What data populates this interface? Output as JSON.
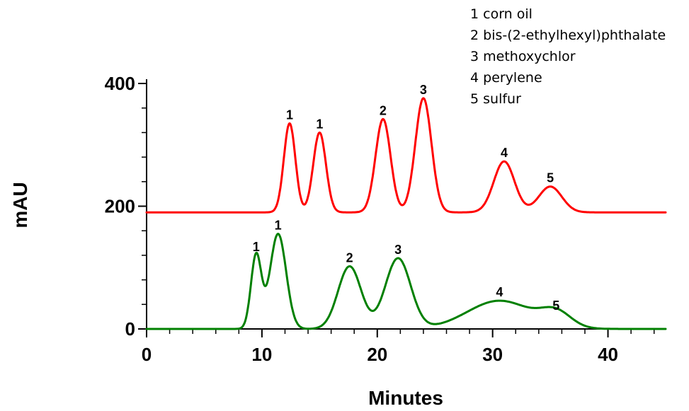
{
  "chart_data": {
    "type": "line",
    "title": "",
    "xlabel": "Minutes",
    "ylabel": "mAU",
    "xlim": [
      0,
      45
    ],
    "ylim": [
      -10,
      420
    ],
    "x_ticks": [
      0,
      10,
      20,
      30,
      40
    ],
    "x_tick_labels": [
      "0",
      "10",
      "20",
      "30",
      "40"
    ],
    "y_ticks": [
      0,
      200,
      400
    ],
    "y_tick_labels": [
      "0",
      "200",
      "400"
    ],
    "grid": false,
    "legend_position": "top-right",
    "legend": [
      "1 corn oil",
      "2 bis-(2-ethylhexyl)phthalate",
      "3 methoxychlor",
      "4 perylene",
      "5 sulfur"
    ],
    "series": [
      {
        "color": "#ff0000",
        "baseline": 190,
        "peaks": [
          {
            "label": "1",
            "x": 12.4,
            "y": 335,
            "width": 0.5
          },
          {
            "label": "1",
            "x": 15.0,
            "y": 320,
            "width": 0.55
          },
          {
            "label": "2",
            "x": 20.5,
            "y": 342,
            "width": 0.65
          },
          {
            "label": "3",
            "x": 24.0,
            "y": 376,
            "width": 0.7
          },
          {
            "label": "4",
            "x": 31.0,
            "y": 273,
            "width": 0.9
          },
          {
            "label": "5",
            "x": 35.0,
            "y": 232,
            "width": 1.0
          }
        ]
      },
      {
        "color": "#008000",
        "baseline": 0,
        "peaks": [
          {
            "label": "1",
            "x": 9.5,
            "y": 120,
            "width": 0.45
          },
          {
            "label": "1",
            "x": 11.4,
            "y": 155,
            "width": 0.7
          },
          {
            "label": "2",
            "x": 17.6,
            "y": 102,
            "width": 1.0
          },
          {
            "label": "3",
            "x": 21.8,
            "y": 115,
            "width": 1.1
          },
          {
            "label": "4",
            "x": 30.6,
            "y": 46,
            "width": 2.8
          },
          {
            "label": "5",
            "x": 35.5,
            "y": 24,
            "width": 1.3
          }
        ]
      }
    ]
  }
}
